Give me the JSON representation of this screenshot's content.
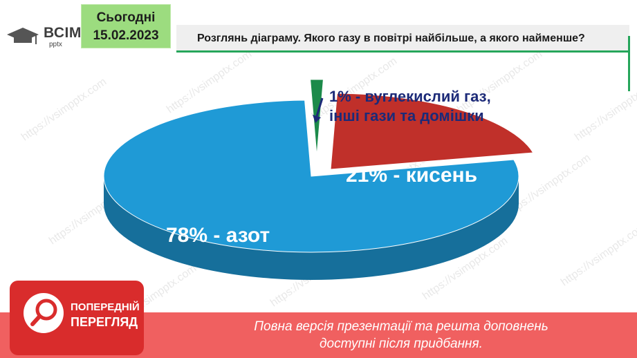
{
  "logo": {
    "text": "ВСІМ",
    "sub": "pptx"
  },
  "date": {
    "label": "Сьогодні",
    "value": "15.02.2023"
  },
  "title": "Розглянь діаграму. Якого газу в повітрі найбільше, а якого найменше?",
  "watermark": "https://vsimpptx.com",
  "colors": {
    "nitrogen": "#1f9ad6",
    "oxygen": "#c0302a",
    "other": "#1c8a4a",
    "banner": "#f06060",
    "badge": "#d92c2c"
  },
  "chart_data": {
    "type": "pie",
    "title": "",
    "categories": [
      "азот",
      "кисень",
      "вуглекислий газ, інші гази та домішки"
    ],
    "values": [
      78,
      21,
      1
    ],
    "labels": [
      "78% - азот",
      "21% - кисень",
      "1% - вуглекислий газ,",
      "інші гази та домішки"
    ]
  },
  "badge": {
    "line1": "ПОПЕРЕДНІЙ",
    "line2": "ПЕРЕГЛЯД"
  },
  "banner": {
    "line1": "Повна версія презентації та решта доповнень",
    "line2": "доступні після придбання."
  }
}
